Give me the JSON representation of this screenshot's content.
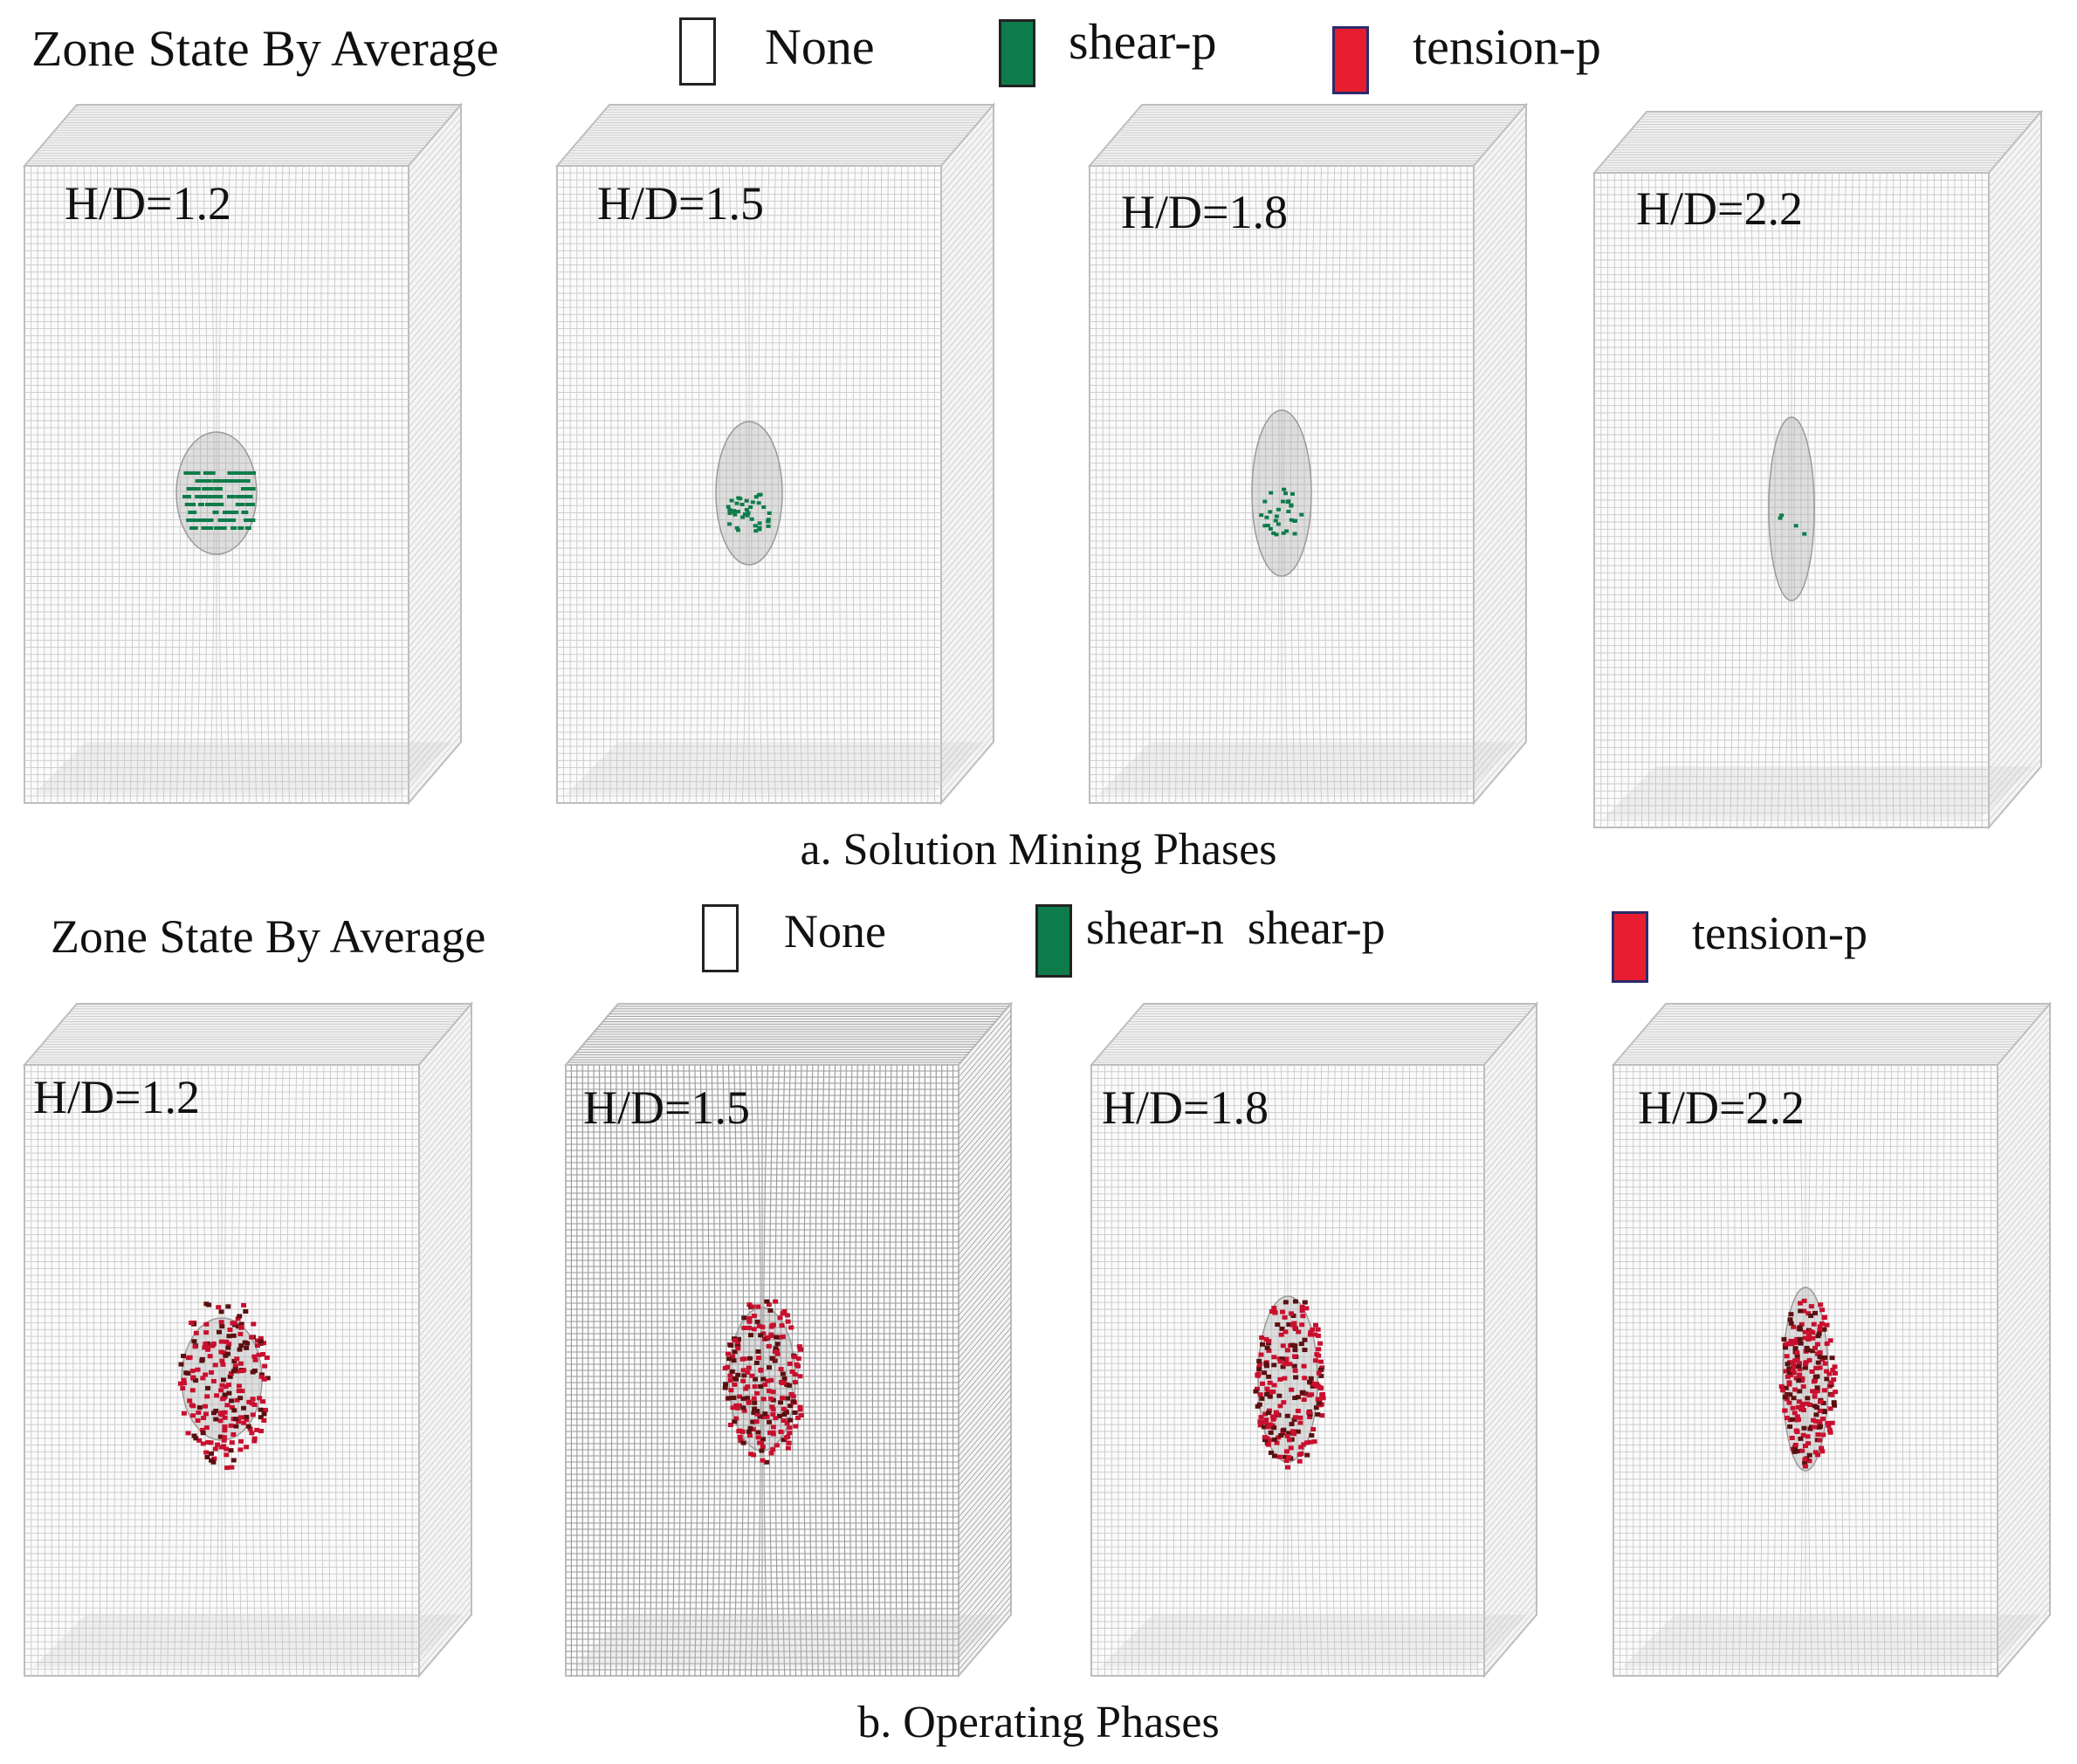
{
  "legend_a": {
    "title": "Zone State By Average",
    "items": [
      {
        "label": "None",
        "color": "#ffffff"
      },
      {
        "label": "shear-p",
        "color": "#0e7c4a"
      },
      {
        "label": "tension-p",
        "color": "#e81d2f"
      }
    ]
  },
  "legend_b": {
    "title": "Zone State By Average",
    "items": [
      {
        "label": "None",
        "color": "#ffffff"
      },
      {
        "label": "shear-n  shear-p",
        "color": "#0e7c4a"
      },
      {
        "label": "tension-p",
        "color": "#e81d2f"
      }
    ]
  },
  "row_a": {
    "caption": "a. Solution Mining Phases",
    "panels": [
      {
        "label": "H/D=1.2",
        "failure": "shear-p"
      },
      {
        "label": "H/D=1.5",
        "failure": "shear-p"
      },
      {
        "label": "H/D=1.8",
        "failure": "shear-p"
      },
      {
        "label": "H/D=2.2",
        "failure": "shear-p"
      }
    ]
  },
  "row_b": {
    "caption": "b. Operating Phases",
    "panels": [
      {
        "label": "H/D=1.2",
        "failure": "tension-p"
      },
      {
        "label": "H/D=1.5",
        "failure": "tension-p"
      },
      {
        "label": "H/D=1.8",
        "failure": "tension-p"
      },
      {
        "label": "H/D=2.2",
        "failure": "tension-p"
      }
    ]
  },
  "colors": {
    "mesh": "#c9c9c9",
    "shear": "#0e7c4a",
    "tension": "#c8102e"
  }
}
